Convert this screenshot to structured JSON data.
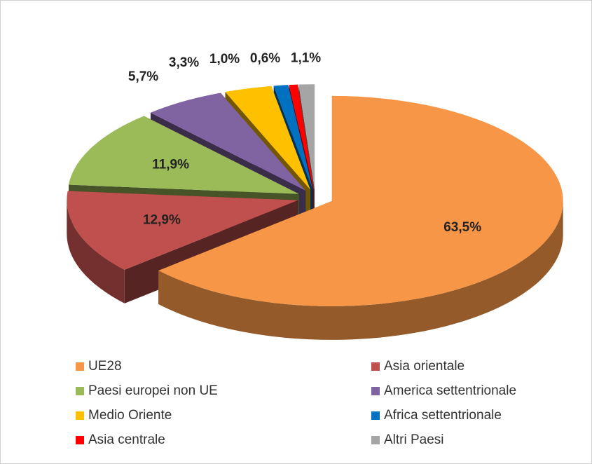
{
  "chart_data": {
    "type": "pie",
    "categories": [
      "UE28",
      "Asia orientale",
      "Paesi europei non UE",
      "America settentrionale",
      "Medio Oriente",
      "Africa settentrionale",
      "Asia centrale",
      "Altri Paesi"
    ],
    "values": [
      63.5,
      12.9,
      11.9,
      5.7,
      3.3,
      1.0,
      0.6,
      1.1
    ],
    "value_labels": [
      "63,5%",
      "12,9%",
      "11,9%",
      "5,7%",
      "3,3%",
      "1,0%",
      "0,6%",
      "1,1%"
    ],
    "colors": [
      "#f79646",
      "#c0504d",
      "#9bbb59",
      "#8064a2",
      "#ffc000",
      "#0070c0",
      "#ff0000",
      "#a5a5a5"
    ],
    "legend": "bottom"
  }
}
